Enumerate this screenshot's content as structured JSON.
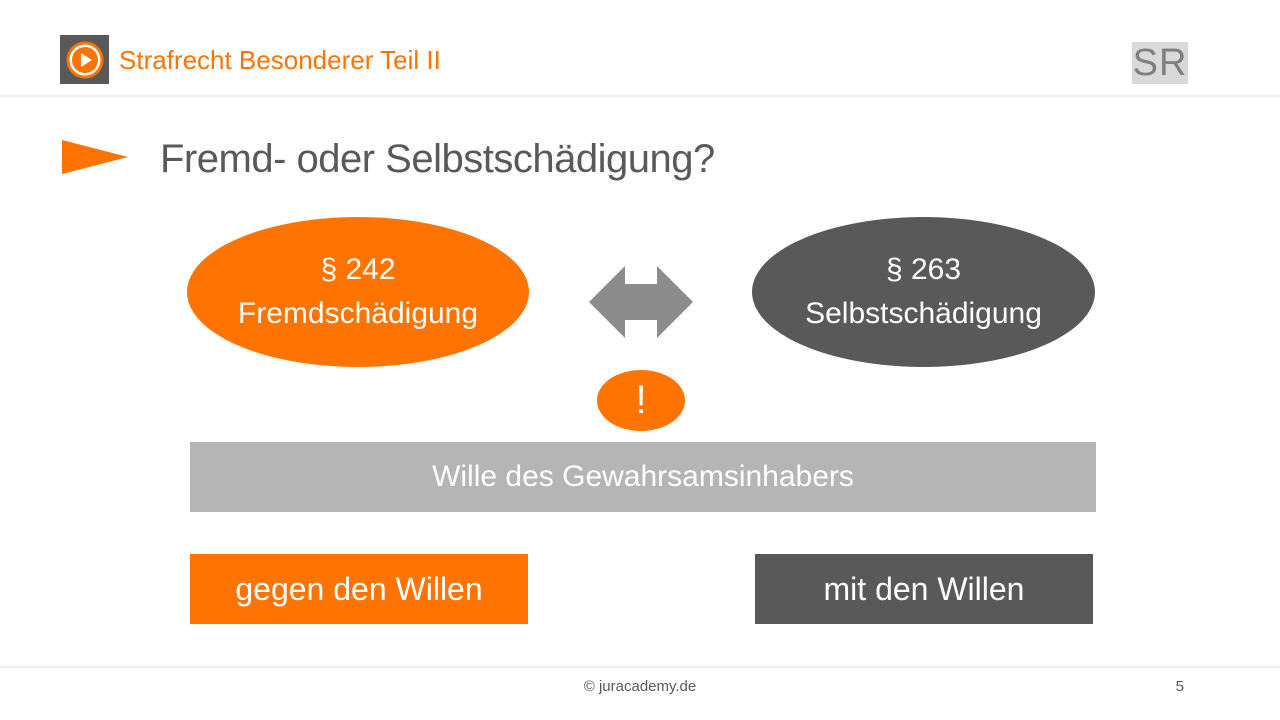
{
  "colors": {
    "orange": "#ff7300",
    "dark_gray": "#595959",
    "mid_gray": "#8c8c8c",
    "light_gray": "#b5b5b5"
  },
  "header": {
    "logo_icon": "play-circle-icon",
    "title": "Strafrecht Besonderer Teil II",
    "badge": "SR"
  },
  "slide": {
    "bullet_icon": "triangle-arrow-icon",
    "title": "Fremd- oder Selbstschädigung?"
  },
  "diagram": {
    "left": {
      "section": "§ 242",
      "label": "Fremdschädigung"
    },
    "right": {
      "section": "§ 263",
      "label": "Selbstschädigung"
    },
    "connector_icon": "double-arrow-icon",
    "exclamation": "!",
    "criterion": "Wille des Gewahrsamsinhabers",
    "left_result": "gegen den Willen",
    "right_result": "mit den Willen"
  },
  "footer": {
    "copyright": "© juracademy.de",
    "page_number": "5"
  }
}
